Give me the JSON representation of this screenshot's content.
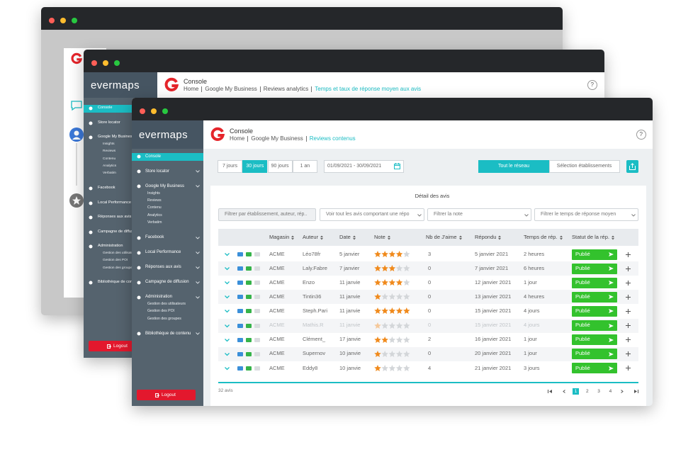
{
  "middle_window": {
    "logo": "evermaps",
    "title": "Console",
    "breadcrumb": [
      "Home",
      "Google My Business",
      "Reviews analytics",
      "Temps et taux de réponse moyen aux avis"
    ],
    "help": "?",
    "sidebar": [
      {
        "label": "Console",
        "active": true
      },
      {
        "label": "Store locator"
      },
      {
        "label": "Google My Business",
        "children": [
          "Insights",
          "Reviews",
          "Contenu",
          "Analytics",
          "Verbatim"
        ]
      },
      {
        "label": "Facebook"
      },
      {
        "label": "Local Performance"
      },
      {
        "label": "Réponses aux avis"
      },
      {
        "label": "Campagne de diffusion"
      },
      {
        "label": "Administration",
        "children": [
          "Gestion des utilisateurs",
          "Gestion des POI",
          "Gestion des groupes"
        ]
      },
      {
        "label": "Bibliothèque de contenu"
      }
    ],
    "logout": "Logout"
  },
  "front_window": {
    "logo": "evermaps",
    "title": "Console",
    "breadcrumb": [
      "Home",
      "Google My Business",
      "Reviews contenus"
    ],
    "help": "?",
    "sidebar": [
      {
        "label": "Console",
        "active": true
      },
      {
        "label": "Store locator"
      },
      {
        "label": "Google My Business",
        "children": [
          "Insights",
          "Reviews",
          "Contenu",
          "Analytics",
          "Verbatim"
        ]
      },
      {
        "label": "Facebook"
      },
      {
        "label": "Local Performance"
      },
      {
        "label": "Réponses aux avis"
      },
      {
        "label": "Campagne de diffusion"
      },
      {
        "label": "Administration",
        "children": [
          "Gestion des utilisateurs",
          "Gestion des POI",
          "Gestion des groupes"
        ]
      },
      {
        "label": "Bibliothèque de contenu"
      }
    ],
    "logout": "Logout",
    "periods": [
      {
        "label": "7 jours"
      },
      {
        "label": "30 jours",
        "active": true
      },
      {
        "label": "90 jours"
      },
      {
        "label": "1 an"
      }
    ],
    "date_range": "01/09/2021 - 30/09/2021",
    "scope": [
      {
        "label": "Tout le réseau",
        "active": true
      },
      {
        "label": "Sélection établissements"
      }
    ],
    "card_title": "Détail des avis",
    "filters": [
      "Filtrer par établissement, auteur, rép...",
      "Voir tout les avis comportant une répo",
      "Filtrer la note",
      "Filtrer le temps de réponse moyen"
    ],
    "columns": [
      "Magasin",
      "Auteur",
      "Date",
      "Note",
      "Nb de J'aime",
      "Répondu",
      "Temps de rép.",
      "Statut de la rép."
    ],
    "rows": [
      {
        "store": "ACME",
        "author": "Léo78fr",
        "date": "5 janvier",
        "rating": 4,
        "likes": 3,
        "replied": "5 janvier 2021",
        "response_time": "2 heures",
        "status": "Publié"
      },
      {
        "store": "ACME",
        "author": "Laly.Fabre",
        "date": "7 janvier",
        "rating": 3,
        "likes": 0,
        "replied": "7 janvier 2021",
        "response_time": "6 heures",
        "status": "Publié"
      },
      {
        "store": "ACME",
        "author": "Enzo",
        "date": "11 janvie",
        "rating": 4,
        "likes": 0,
        "replied": "12 janvier 2021",
        "response_time": "1 jour",
        "status": "Publié"
      },
      {
        "store": "ACME",
        "author": "Tintin36",
        "date": "11 janvie",
        "rating": 1,
        "likes": 0,
        "replied": "13 janvier 2021",
        "response_time": "4 heures",
        "status": "Publié"
      },
      {
        "store": "ACME",
        "author": "Steph.Pari",
        "date": "11 janvie",
        "rating": 5,
        "likes": 0,
        "replied": "15 janvier 2021",
        "response_time": "4 jours",
        "status": "Publié"
      },
      {
        "store": "ACME",
        "author": "Mathis.R",
        "date": "11 janvie",
        "rating": 1,
        "likes": 0,
        "replied": "15 janvier 2021",
        "response_time": "4 jours",
        "status": "Publié",
        "disabled": true
      },
      {
        "store": "ACME",
        "author": "Clément_",
        "date": "17 janvie",
        "rating": 2,
        "likes": 2,
        "replied": "16 janvier 2021",
        "response_time": "1 jour",
        "status": "Publié"
      },
      {
        "store": "ACME",
        "author": "Supernov",
        "date": "10 janvie",
        "rating": 1,
        "likes": 0,
        "replied": "20 janvier 2021",
        "response_time": "1 jour",
        "status": "Publié"
      },
      {
        "store": "ACME",
        "author": "Eddy8",
        "date": "10 janvie",
        "rating": 1,
        "likes": 4,
        "replied": "21 janvier 2021",
        "response_time": "3 jours",
        "status": "Publié"
      }
    ],
    "total": "32 avis",
    "pages": [
      {
        "label": 1,
        "active": true
      },
      {
        "label": 2
      },
      {
        "label": 3
      },
      {
        "label": 4
      }
    ]
  }
}
